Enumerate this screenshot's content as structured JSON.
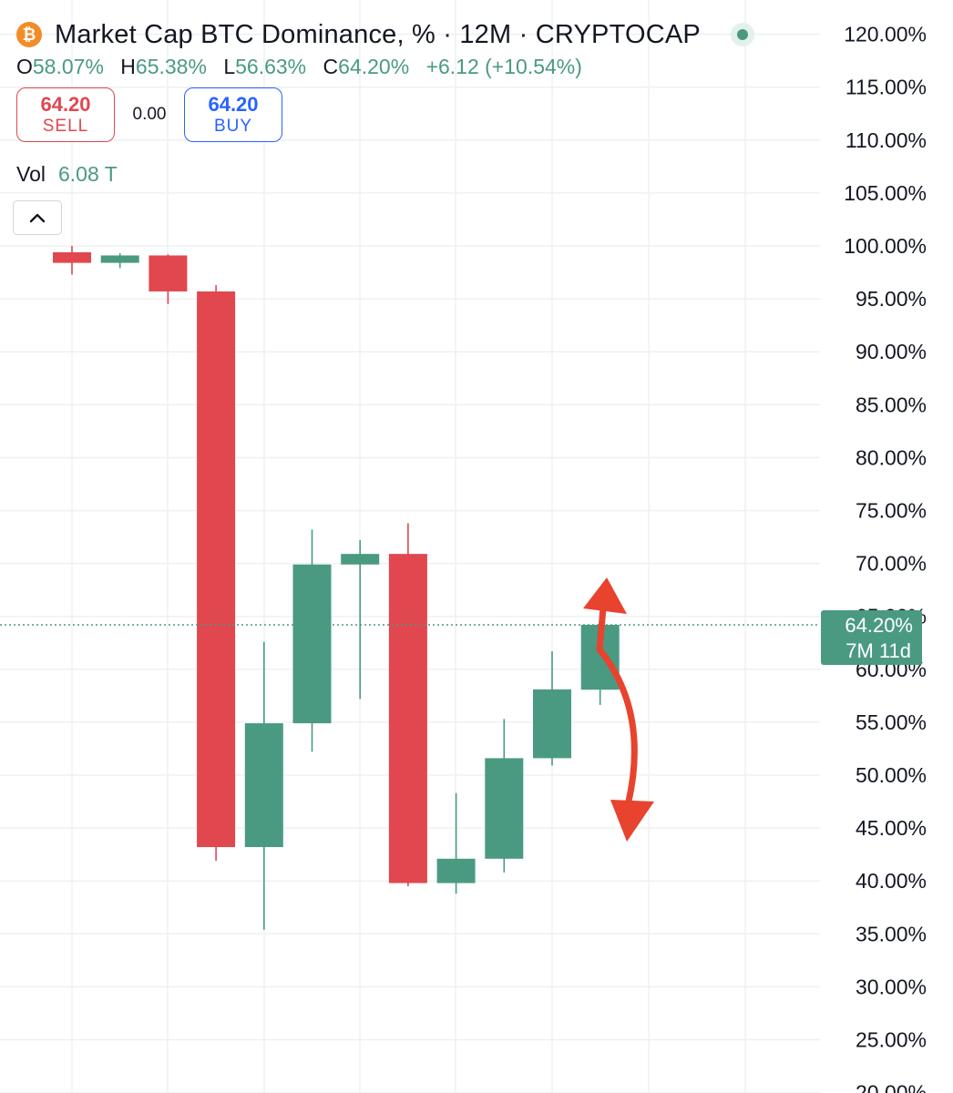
{
  "header": {
    "icon": "bitcoin-icon",
    "icon_glyph": "₿",
    "title": "Market Cap BTC Dominance, % · 12M · CRYPTOCAP",
    "status": "market-open-dot",
    "ohlc": {
      "o_label": "O",
      "o_value": "58.07%",
      "h_label": "H",
      "h_value": "65.38%",
      "l_label": "L",
      "l_value": "56.63%",
      "c_label": "C",
      "c_value": "64.20%",
      "change": "+6.12 (+10.54%)"
    },
    "sell": {
      "price": "64.20",
      "label": "SELL"
    },
    "spread": "0.00",
    "buy": {
      "price": "64.20",
      "label": "BUY"
    },
    "volume": {
      "label": "Vol",
      "value": "6.08 T"
    },
    "collapse_icon": "chevron-up-icon"
  },
  "colors": {
    "up": "#4a9a82",
    "down": "#e0474f",
    "buy": "#2962ff",
    "grid": "#eef0f3",
    "annotation": "#e8432e",
    "bitcoin": "#f28c28"
  },
  "chart_data": {
    "type": "candlestick",
    "title": "Market Cap BTC Dominance, %",
    "interval": "12M",
    "y_unit": "%",
    "ylim": [
      20,
      120
    ],
    "y_ticks": [
      25,
      30,
      35,
      40,
      45,
      50,
      55,
      60,
      65,
      70,
      75,
      80,
      85,
      90,
      95,
      100,
      105,
      110,
      115,
      120
    ],
    "candles": [
      {
        "o": 99.4,
        "h": 100.0,
        "l": 97.3,
        "c": 98.4
      },
      {
        "o": 98.4,
        "h": 99.3,
        "l": 97.9,
        "c": 99.1
      },
      {
        "o": 99.1,
        "h": 99.2,
        "l": 94.5,
        "c": 95.7
      },
      {
        "o": 95.7,
        "h": 96.3,
        "l": 41.9,
        "c": 43.2
      },
      {
        "o": 43.2,
        "h": 62.6,
        "l": 35.4,
        "c": 54.9
      },
      {
        "o": 54.9,
        "h": 73.2,
        "l": 52.2,
        "c": 69.9
      },
      {
        "o": 69.9,
        "h": 72.2,
        "l": 57.2,
        "c": 70.9
      },
      {
        "o": 70.9,
        "h": 73.8,
        "l": 39.5,
        "c": 39.8
      },
      {
        "o": 39.8,
        "h": 48.3,
        "l": 38.8,
        "c": 42.1
      },
      {
        "o": 42.1,
        "h": 55.3,
        "l": 40.8,
        "c": 51.6
      },
      {
        "o": 51.6,
        "h": 61.7,
        "l": 50.9,
        "c": 58.1
      },
      {
        "o": 58.07,
        "h": 65.38,
        "l": 56.63,
        "c": 64.2
      }
    ],
    "last_price": {
      "value": 64.2,
      "label": "64.20%",
      "countdown": "7M 11d"
    },
    "grid": true
  }
}
